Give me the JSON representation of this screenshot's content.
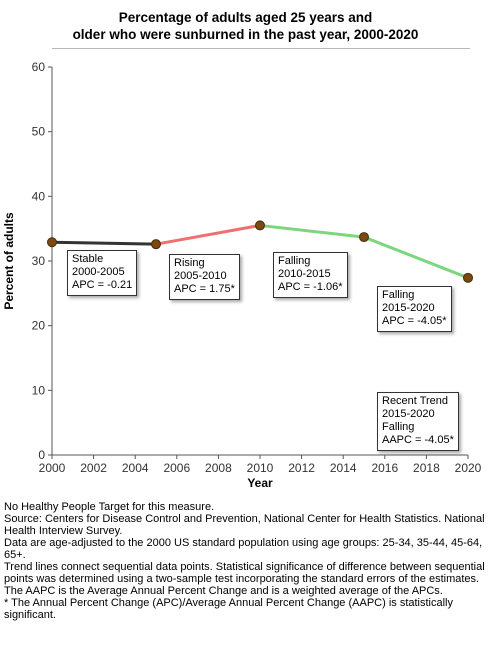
{
  "chart_data": {
    "type": "line",
    "title_lines": [
      "Percentage of adults aged 25 years and",
      "older who were sunburned in the past year, 2000-2020"
    ],
    "xlabel": "Year",
    "ylabel": "Percent of adults",
    "xlim": [
      2000,
      2020
    ],
    "ylim": [
      0,
      60
    ],
    "x_ticks": [
      "2000",
      "2002",
      "2004",
      "2006",
      "2008",
      "2010",
      "2012",
      "2014",
      "2016",
      "2018",
      "2020"
    ],
    "y_ticks": [
      "0",
      "10",
      "20",
      "30",
      "40",
      "50",
      "60"
    ],
    "grid": false,
    "points": [
      {
        "x": 2000,
        "y": 32.9
      },
      {
        "x": 2005,
        "y": 32.6
      },
      {
        "x": 2010,
        "y": 35.5
      },
      {
        "x": 2015,
        "y": 33.7
      },
      {
        "x": 2020,
        "y": 27.4
      }
    ],
    "segments": [
      {
        "from": 2000,
        "to": 2005,
        "trend": "Stable",
        "color": "#333333"
      },
      {
        "from": 2005,
        "to": 2010,
        "trend": "Rising",
        "color": "#f07070"
      },
      {
        "from": 2010,
        "to": 2015,
        "trend": "Falling",
        "color": "#7dd67d"
      },
      {
        "from": 2015,
        "to": 2020,
        "trend": "Falling",
        "color": "#7dd67d"
      }
    ],
    "point_color": "#7a4a10",
    "annotations": [
      {
        "lines": [
          "Stable",
          "2000-2005",
          "APC = -0.21"
        ]
      },
      {
        "lines": [
          "Rising",
          "2005-2010",
          "APC =  1.75*"
        ]
      },
      {
        "lines": [
          "Falling",
          "2010-2015",
          "APC = -1.06*"
        ]
      },
      {
        "lines": [
          "Falling",
          "2015-2020",
          "APC = -4.05*"
        ]
      },
      {
        "lines": [
          "Recent Trend",
          "2015-2020",
          "Falling",
          "AAPC = -4.05*"
        ]
      }
    ]
  },
  "notes": [
    "No Healthy People Target for this measure.",
    "Source: Centers for Disease Control and Prevention, National Center for Health Statistics. National Health Interview Survey.",
    "Data are age-adjusted to the 2000 US standard population using age groups: 25-34, 35-44, 45-64, 65+.",
    "Trend lines connect sequential data points. Statistical significance of difference between sequential points was determined using a two-sample test incorporating the standard errors of the estimates.",
    "The AAPC is the Average Annual Percent Change and is a weighted average of the APCs.",
    "* The Annual Percent Change (APC)/Average Annual Percent Change (AAPC) is statistically significant."
  ]
}
